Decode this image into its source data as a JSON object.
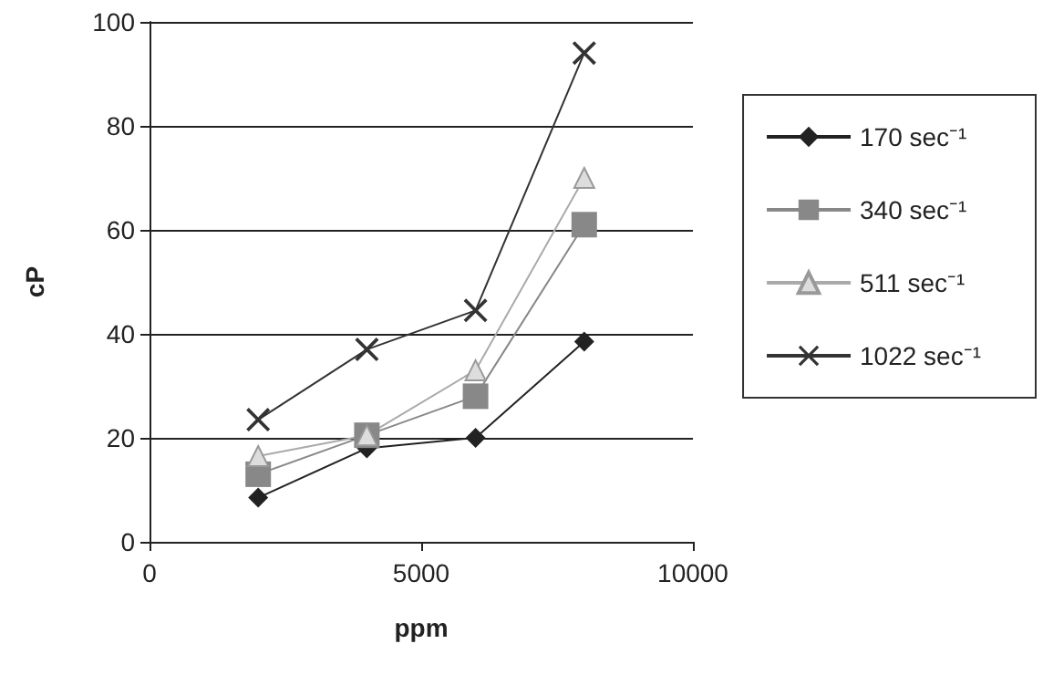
{
  "chart_data": {
    "type": "line",
    "xlabel": "ppm",
    "ylabel": "cP",
    "x": [
      2000,
      4000,
      6000,
      8000
    ],
    "series": [
      {
        "name": "170 sec⁻¹",
        "color": "#222222",
        "marker": "diamond",
        "values": [
          8.5,
          18,
          20,
          38.5
        ]
      },
      {
        "name": "340 sec⁻¹",
        "color": "#888888",
        "marker": "square",
        "values": [
          13,
          20.5,
          28,
          61
        ]
      },
      {
        "name": "511 sec⁻¹",
        "color": "#aaaaaa",
        "marker": "triangle",
        "values": [
          16.5,
          20.5,
          33,
          70
        ]
      },
      {
        "name": "1022 sec⁻¹",
        "color": "#333333",
        "marker": "cross",
        "values": [
          23.5,
          37,
          44.5,
          94
        ]
      }
    ],
    "xlim": [
      0,
      10000
    ],
    "xticks": [
      0,
      5000,
      10000
    ],
    "ylim": [
      0,
      100
    ],
    "yticks": [
      0,
      20,
      40,
      60,
      80,
      100
    ],
    "grid": "y",
    "legend": "right",
    "line_style": "solid"
  }
}
